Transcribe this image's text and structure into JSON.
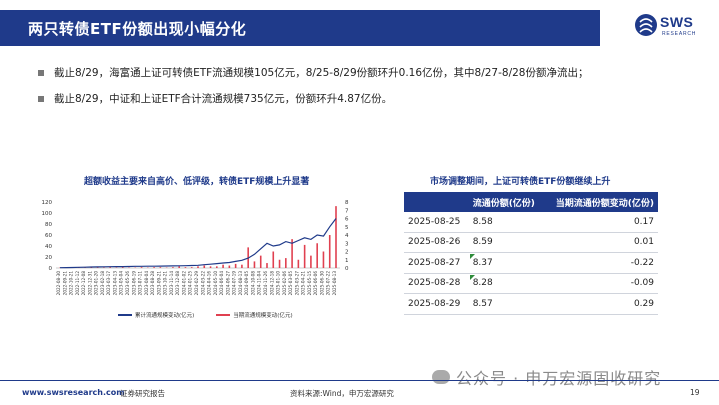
{
  "header": {
    "title": "两只转债ETF份额出现小幅分化",
    "logo_text": "SWS",
    "logo_sub": "RESEARCH"
  },
  "bullets": [
    "截止8/29，海富通上证可转债ETF流通规模105亿元，8/25-8/29份额环升0.16亿份，其中8/27-8/28份额净流出；",
    "截止8/29，中证和上证ETF合计流通规模735亿元，份额环升4.87亿份。"
  ],
  "chart_title": "超额收益主要来自高价、低评级，转债ETF规模上升显著",
  "chart_data": {
    "type": "line",
    "y_left_ticks": [
      "0",
      "20",
      "40",
      "60",
      "80",
      "100",
      "120"
    ],
    "y_right_ticks": [
      "0",
      "1",
      "2",
      "3",
      "4",
      "5",
      "6",
      "7",
      "8"
    ],
    "ylim_left": [
      0,
      120
    ],
    "ylim_right": [
      0,
      8
    ],
    "x_ticks": [
      "2022-08-30",
      "2022-09-21",
      "2022-10-21",
      "2022-11-12",
      "2022-12-08",
      "2022-12-31",
      "2023-01-20",
      "2023-02-18",
      "2023-03-17",
      "2023-04-13",
      "2023-05-04",
      "2023-05-26",
      "2023-06-19",
      "2023-07-11",
      "2023-08-04",
      "2023-08-28",
      "2023-09-21",
      "2023-10-21",
      "2023-11-14",
      "2023-12-08",
      "2024-01-02",
      "2024-01-25",
      "2024-02-29",
      "2024-03-22",
      "2024-04-16",
      "2024-05-10",
      "2024-06-04",
      "2024-06-27",
      "2024-07-19",
      "2024-08-13",
      "2024-09-05",
      "2024-10-08",
      "2024-11-04",
      "2024-11-26",
      "2024-12-18",
      "2025-01-10",
      "2025-02-06",
      "2025-03-05",
      "2025-03-27",
      "2025-04-21",
      "2025-05-15",
      "2025-06-06",
      "2025-06-30",
      "2025-07-22",
      "2025-08-13"
    ],
    "series": [
      {
        "name": "累计流通规模变动(亿元)",
        "color": "#1f3a8a",
        "axis": "left",
        "values": [
          0.5,
          0.8,
          1.0,
          1.2,
          1.5,
          1.8,
          2.0,
          2.2,
          2.3,
          2.5,
          2.6,
          2.8,
          3.0,
          3.0,
          3.2,
          3.3,
          3.5,
          3.6,
          3.8,
          4.0,
          4.2,
          4.5,
          5.0,
          6.0,
          7.0,
          8.0,
          9.0,
          10,
          12,
          14,
          18,
          25,
          35,
          45,
          40,
          42,
          48,
          45,
          50,
          55,
          52,
          60,
          58,
          75,
          90
        ]
      },
      {
        "name": "当期流通规模变动(亿元)",
        "color": "#e04050",
        "axis": "right",
        "values": [
          0.05,
          0.05,
          0.05,
          0.1,
          0.05,
          0.1,
          0.05,
          0.05,
          0.1,
          0.05,
          0.1,
          0.05,
          0.05,
          0.1,
          0.05,
          0.1,
          0.1,
          0.05,
          0.1,
          0.2,
          0.1,
          0.1,
          0.2,
          0.3,
          0.2,
          0.2,
          0.4,
          0.3,
          0.5,
          0.4,
          2.5,
          0.8,
          1.5,
          0.6,
          2.0,
          1.0,
          1.2,
          3.5,
          1.0,
          2.8,
          1.5,
          3.0,
          2.0,
          4.0,
          7.5
        ]
      }
    ]
  },
  "table_title": "市场调整期间，上证可转债ETF份额继续上升",
  "table": {
    "headers": [
      "",
      "流通份额(亿份)",
      "当期流通份额变动(亿份)"
    ],
    "rows": [
      {
        "date": "2025-08-25",
        "share": "8.58",
        "change": "0.17",
        "flag": false
      },
      {
        "date": "2025-08-26",
        "share": "8.59",
        "change": "0.01",
        "flag": false
      },
      {
        "date": "2025-08-27",
        "share": "8.37",
        "change": "-0.22",
        "flag": true
      },
      {
        "date": "2025-08-28",
        "share": "8.28",
        "change": "-0.09",
        "flag": true
      },
      {
        "date": "2025-08-29",
        "share": "8.57",
        "change": "0.29",
        "flag": false
      }
    ]
  },
  "footer": {
    "url": "www.swsresearch.com",
    "type": "证券研究报告",
    "source": "资料来源:Wind，申万宏源研究",
    "page": "19"
  },
  "watermark": "公众号 · 申万宏源固收研究",
  "colors": {
    "brand": "#1f3a8a",
    "red": "#e04050",
    "green": "#2e8b3a"
  }
}
